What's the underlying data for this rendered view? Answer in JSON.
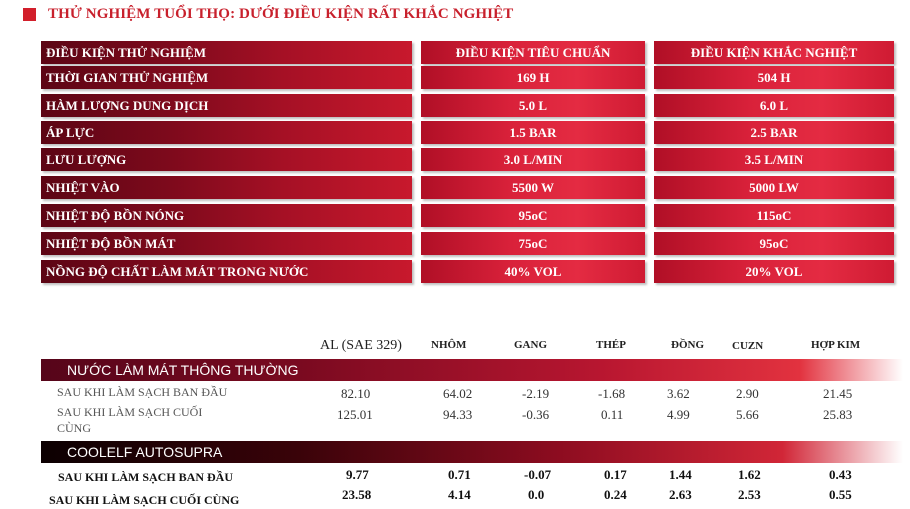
{
  "title": "THỬ NGHIỆM TUỔI THỌ: DƯỚI ĐIỀU KIỆN RẤT KHẮC NGHIỆT",
  "conditions_table": {
    "header": [
      "ĐIỀU KIỆN THỬ NGHIỆM",
      "ĐIỀU KIỆN TIÊU CHUẨN",
      "ĐIỀU KIỆN KHẮC NGHIỆT"
    ],
    "rows": [
      [
        "THỜI GIAN THỬ NGHIỆM",
        "169 H",
        "504 H"
      ],
      [
        "HÀM LƯỢNG DUNG DỊCH",
        "5.0 L",
        "6.0 L"
      ],
      [
        "ÁP LỰC",
        "1.5 BAR",
        "2.5 BAR"
      ],
      [
        "LƯU LƯỢNG",
        "3.0 L/MIN",
        "3.5 L/MIN"
      ],
      [
        "NHIỆT VÀO",
        "5500 W",
        "5000 LW"
      ],
      [
        "NHIỆT ĐỘ BỒN NÓNG",
        "95oC",
        "115oC"
      ],
      [
        "NHIỆT ĐỘ BỒN MÁT",
        "75oC",
        "95oC"
      ],
      [
        "NỒNG ĐỘ CHẤT LÀM MÁT TRONG NƯỚC",
        "40% VOL",
        "20% VOL"
      ]
    ]
  },
  "metals_table": {
    "columns": [
      "AL (SAE 329)",
      "NHÔM",
      "GANG",
      "THÉP",
      "ĐỒNG",
      "CUZN",
      "HỢP KIM"
    ],
    "groups": [
      {
        "name": "NƯỚC LÀM MÁT THÔNG THƯỜNG",
        "rows": [
          {
            "label": "SAU KHI LÀM SẠCH BAN ĐẦU",
            "values": [
              "82.10",
              "64.02",
              "-2.19",
              "-1.68",
              "3.62",
              "2.90",
              "21.45"
            ]
          },
          {
            "label": "SAU KHI LÀM SẠCH CUỐI CÙNG",
            "values": [
              "125.01",
              "94.33",
              "-0.36",
              "0.11",
              "4.99",
              "5.66",
              "25.83"
            ]
          }
        ]
      },
      {
        "name": "COOLELF AUTOSUPRA",
        "rows": [
          {
            "label": "SAU KHI LÀM SẠCH BAN ĐẦU",
            "values": [
              "9.77",
              "0.71",
              "-0.07",
              "0.17",
              "1.44",
              "1.62",
              "0.43"
            ]
          },
          {
            "label": "SAU KHI LÀM SẠCH CUỐI CÙNG",
            "values": [
              "23.58",
              "4.14",
              "0.0",
              "0.24",
              "2.63",
              "2.53",
              "0.55"
            ]
          }
        ]
      }
    ]
  },
  "colors": {
    "accent_red": "#c8202c",
    "band_dark": "#5c0514"
  }
}
